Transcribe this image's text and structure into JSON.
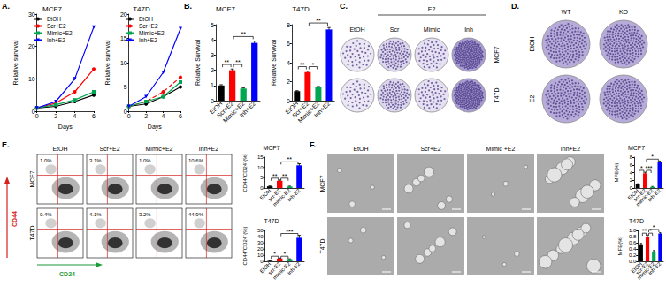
{
  "panel_labels": [
    "A.",
    "B.",
    "C.",
    "D.",
    "E.",
    "F."
  ],
  "chart_data": [
    {
      "type": "line",
      "title": "MCF7",
      "x_label": "Days",
      "y_label": "Relative survival",
      "x": [
        0,
        2,
        4,
        6
      ],
      "xlim": [
        0,
        6
      ],
      "xticks": [
        0,
        2,
        4,
        6
      ],
      "ylim": [
        0,
        30
      ],
      "yticks": [
        0,
        10,
        20,
        30
      ],
      "grid": false,
      "legend": "upper left",
      "series": [
        {
          "name": "EtOH",
          "color": "#000000",
          "marker": "circle",
          "line_style": "solid",
          "values": [
            1,
            1.5,
            3,
            5
          ]
        },
        {
          "name": "Scr+E2",
          "color": "#ff0000",
          "marker": "circle",
          "line_style": "solid",
          "values": [
            1,
            2.5,
            6,
            13
          ]
        },
        {
          "name": "Mimic+E2",
          "color": "#00a651",
          "marker": "square",
          "line_style": "solid",
          "values": [
            1,
            2,
            3.5,
            6
          ]
        },
        {
          "name": "Inh+E2",
          "color": "#0000ff",
          "marker": "triangle_down",
          "line_style": "solid",
          "values": [
            1,
            3,
            10,
            26
          ]
        }
      ]
    },
    {
      "type": "line",
      "title": "T47D",
      "x_label": "Days",
      "y_label": "Relative survival",
      "x": [
        0,
        2,
        4,
        6
      ],
      "xlim": [
        0,
        6
      ],
      "xticks": [
        0,
        2,
        4,
        6
      ],
      "ylim": [
        0,
        20
      ],
      "yticks": [
        0,
        5,
        10,
        15,
        20
      ],
      "grid": false,
      "legend": "upper left",
      "series": [
        {
          "name": "EtOH",
          "color": "#000000",
          "marker": "circle",
          "line_style": "solid",
          "values": [
            1,
            1.5,
            3,
            5
          ]
        },
        {
          "name": "Scr+E2",
          "color": "#ff0000",
          "marker": "circle",
          "line_style": "dashed",
          "values": [
            1,
            2,
            4,
            7
          ]
        },
        {
          "name": "Mimic+E2",
          "color": "#00a651",
          "marker": "square",
          "line_style": "solid",
          "values": [
            1,
            2,
            3,
            6
          ]
        },
        {
          "name": "Inh+E2",
          "color": "#0000ff",
          "marker": "triangle_down",
          "line_style": "solid",
          "values": [
            1,
            3,
            8,
            17
          ]
        }
      ]
    },
    {
      "type": "bar",
      "title": "MCF7",
      "y_label": "Relative Survival",
      "categories": [
        "EtOH",
        "Scr+E2",
        "Mimic+E2",
        "Inh+E2"
      ],
      "values": [
        1,
        2,
        0.8,
        3.8
      ],
      "errors": [
        0.05,
        0.08,
        0.05,
        0.12
      ],
      "colors": [
        "#000000",
        "#ff0000",
        "#00a651",
        "#0000ff"
      ],
      "ylim": [
        0,
        5
      ],
      "yticks": [
        0,
        1,
        2,
        3,
        4,
        5
      ],
      "grid": false,
      "annotations": [
        {
          "between": [
            0,
            1
          ],
          "text": "**"
        },
        {
          "between": [
            1,
            2
          ],
          "text": "**"
        },
        {
          "between": [
            1,
            3
          ],
          "text": "**"
        }
      ]
    },
    {
      "type": "bar",
      "title": "T47D",
      "y_label": "Relative Survival",
      "categories": [
        "EtOH",
        "Scr+E2",
        "Mimic+E2",
        "Inh+E2"
      ],
      "values": [
        1,
        3,
        1.4,
        7.5
      ],
      "errors": [
        0.05,
        0.1,
        0.1,
        0.2
      ],
      "colors": [
        "#000000",
        "#ff0000",
        "#00a651",
        "#0000ff"
      ],
      "ylim": [
        0,
        8
      ],
      "yticks": [
        0,
        2,
        4,
        6,
        8
      ],
      "grid": false,
      "annotations": [
        {
          "between": [
            0,
            1
          ],
          "text": "**"
        },
        {
          "between": [
            1,
            2
          ],
          "text": "*"
        },
        {
          "between": [
            1,
            3
          ],
          "text": "**"
        }
      ]
    },
    {
      "type": "bar",
      "title": "MCF7",
      "y_label": "CD44⁺CD24⁻(%)",
      "categories": [
        "EtOH",
        "scr-E2",
        "mimic-E2",
        "inh-E2"
      ],
      "values": [
        0.8,
        3.5,
        0.7,
        11
      ],
      "errors": [
        0.2,
        0.4,
        0.2,
        0.8
      ],
      "colors": [
        "#000000",
        "#ff0000",
        "#00a651",
        "#0000ff"
      ],
      "ylim": [
        0,
        15
      ],
      "yticks": [
        0,
        5,
        10,
        15
      ],
      "grid": false,
      "annotations": [
        {
          "between": [
            0,
            1
          ],
          "text": "**"
        },
        {
          "between": [
            1,
            2
          ],
          "text": "**"
        },
        {
          "between": [
            1,
            3
          ],
          "text": "**"
        }
      ]
    },
    {
      "type": "bar",
      "title": "T47D",
      "y_label": "CD44⁺CD24⁻(%)",
      "categories": [
        "EtOH",
        "scr-E2",
        "mimic-E2",
        "inh-E2"
      ],
      "values": [
        0.5,
        4.5,
        3.5,
        38
      ],
      "errors": [
        0.2,
        0.8,
        0.6,
        4
      ],
      "colors": [
        "#000000",
        "#ff0000",
        "#00a651",
        "#0000ff"
      ],
      "ylim": [
        0,
        50
      ],
      "yticks": [
        0,
        10,
        20,
        30,
        40,
        50
      ],
      "grid": false,
      "annotations": [
        {
          "between": [
            0,
            1
          ],
          "text": "*"
        },
        {
          "between": [
            1,
            2
          ],
          "text": "*"
        },
        {
          "between": [
            1,
            3
          ],
          "text": "***"
        }
      ]
    },
    {
      "type": "bar",
      "title": "MCF7",
      "y_label": "MFE(%)",
      "categories": [
        "EtOH",
        "scr-E2",
        "mimic-E2",
        "inh-E2"
      ],
      "values": [
        1,
        3.8,
        0.3,
        6.8
      ],
      "errors": [
        0.1,
        0.3,
        0.1,
        0.2
      ],
      "colors": [
        "#000000",
        "#ff0000",
        "#00a651",
        "#0000ff"
      ],
      "ylim": [
        0,
        8
      ],
      "yticks": [
        0,
        2,
        4,
        6,
        8
      ],
      "grid": false,
      "annotations": [
        {
          "between": [
            0,
            1
          ],
          "text": "*"
        },
        {
          "between": [
            1,
            2
          ],
          "text": "***"
        },
        {
          "between": [
            1,
            3
          ],
          "text": "*"
        }
      ]
    },
    {
      "type": "bar",
      "title": "T47D",
      "y_label": "MFE(%)",
      "categories": [
        "EtOH",
        "scr-E2",
        "mimic-E2",
        "inh-E2"
      ],
      "values": [
        0.55,
        0.8,
        0.32,
        0.9
      ],
      "errors": [
        0.03,
        0.05,
        0.03,
        0.03
      ],
      "colors": [
        "#000000",
        "#ff0000",
        "#00a651",
        "#0000ff"
      ],
      "ylim": [
        0,
        1
      ],
      "yticks": [
        {
          "value": 0,
          "label": "0.0"
        },
        0.2,
        0.4,
        0.6,
        0.8,
        {
          "value": 1,
          "label": "1.0"
        }
      ],
      "grid": false,
      "annotations": [
        {
          "between": [
            0,
            1
          ],
          "text": "**"
        },
        {
          "between": [
            1,
            2
          ],
          "text": "*"
        },
        {
          "between": [
            1,
            3
          ],
          "text": "*"
        }
      ]
    }
  ],
  "colony_formation": {
    "group_label": "E2",
    "columns": [
      "EtOH",
      "Scr",
      "Mimic",
      "Inh"
    ],
    "rows": [
      "MCF7",
      "T47D"
    ]
  },
  "knockout_colonies": {
    "columns": [
      "WT",
      "KO"
    ],
    "rows": [
      "EtOH",
      "E2"
    ]
  },
  "flow_cytometry": {
    "columns": [
      "EtOH",
      "Scr+E2",
      "Mimic+E2",
      "Inh+E2"
    ],
    "rows": [
      {
        "name": "MCF7",
        "percentages": [
          "1.0%",
          "3.1%",
          "1.0%",
          "10.6%"
        ]
      },
      {
        "name": "T47D",
        "percentages": [
          "0.4%",
          "4.1%",
          "3.2%",
          "44.9%"
        ]
      }
    ],
    "y_marker": "CD44",
    "x_marker": "CD24"
  },
  "mammospheres": {
    "columns": [
      "EtOH",
      "Scr+E2",
      "Mimic +E2",
      "Inh+E2"
    ],
    "rows": [
      "MCF7",
      "T47D"
    ]
  }
}
